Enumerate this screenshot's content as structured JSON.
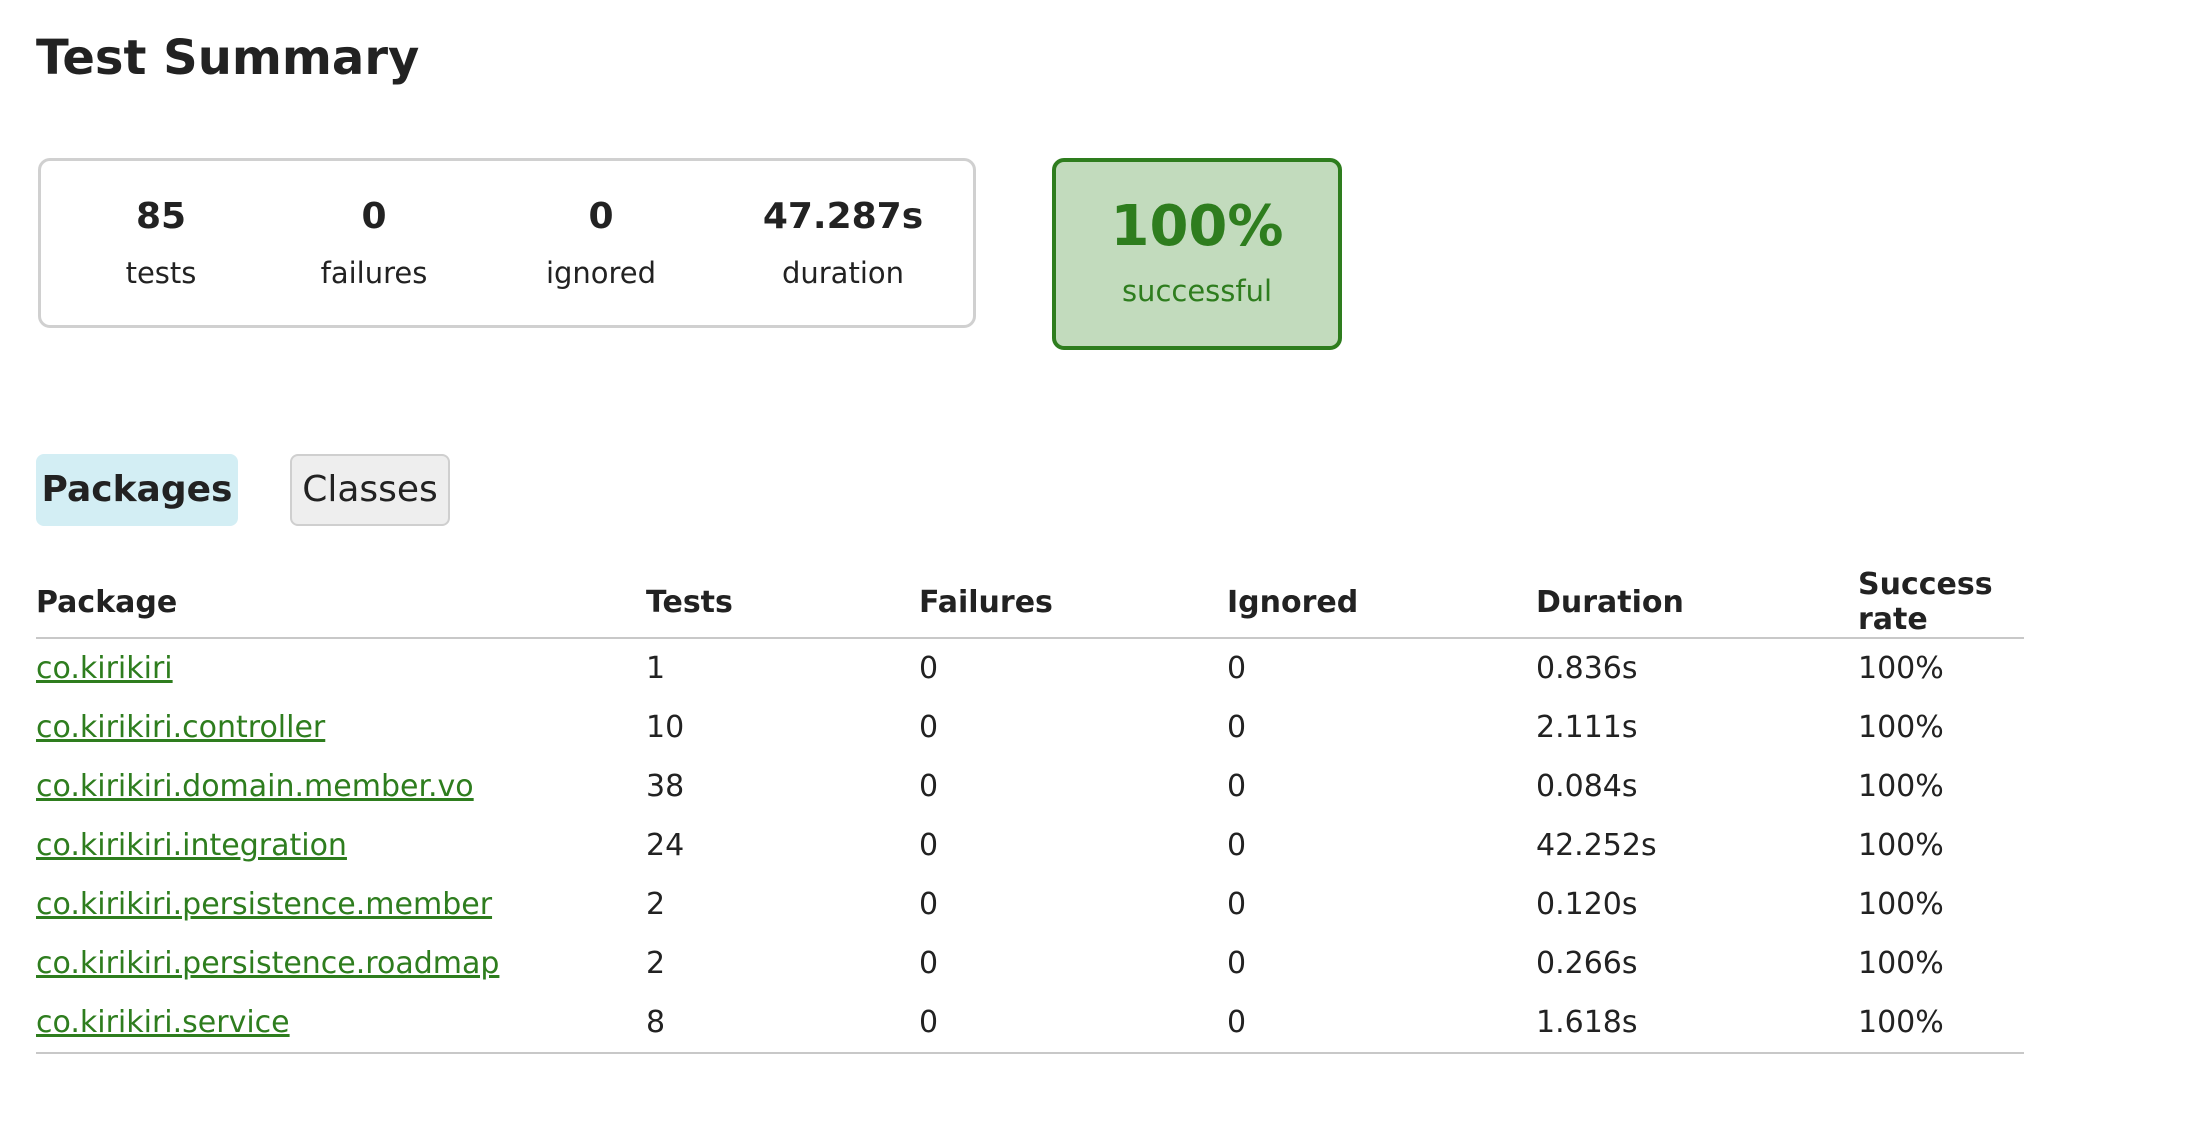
{
  "title": "Test Summary",
  "summary": {
    "tests": {
      "value": "85",
      "label": "tests"
    },
    "failures": {
      "value": "0",
      "label": "failures"
    },
    "ignored": {
      "value": "0",
      "label": "ignored"
    },
    "duration": {
      "value": "47.287s",
      "label": "duration"
    }
  },
  "success": {
    "value": "100%",
    "label": "successful"
  },
  "tabs": {
    "packages": "Packages",
    "classes": "Classes"
  },
  "table": {
    "headers": [
      "Package",
      "Tests",
      "Failures",
      "Ignored",
      "Duration",
      "Success rate"
    ],
    "rows": [
      [
        "co.kirikiri",
        "1",
        "0",
        "0",
        "0.836s",
        "100%"
      ],
      [
        "co.kirikiri.controller",
        "10",
        "0",
        "0",
        "2.111s",
        "100%"
      ],
      [
        "co.kirikiri.domain.member.vo",
        "38",
        "0",
        "0",
        "0.084s",
        "100%"
      ],
      [
        "co.kirikiri.integration",
        "24",
        "0",
        "0",
        "42.252s",
        "100%"
      ],
      [
        "co.kirikiri.persistence.member",
        "2",
        "0",
        "0",
        "0.120s",
        "100%"
      ],
      [
        "co.kirikiri.persistence.roadmap",
        "2",
        "0",
        "0",
        "0.266s",
        "100%"
      ],
      [
        "co.kirikiri.service",
        "8",
        "0",
        "0",
        "1.618s",
        "100%"
      ]
    ]
  },
  "colors": {
    "success_green": "#2e7d1e",
    "success_bg": "#c2dbbd",
    "active_tab_bg": "#d3eef4"
  }
}
